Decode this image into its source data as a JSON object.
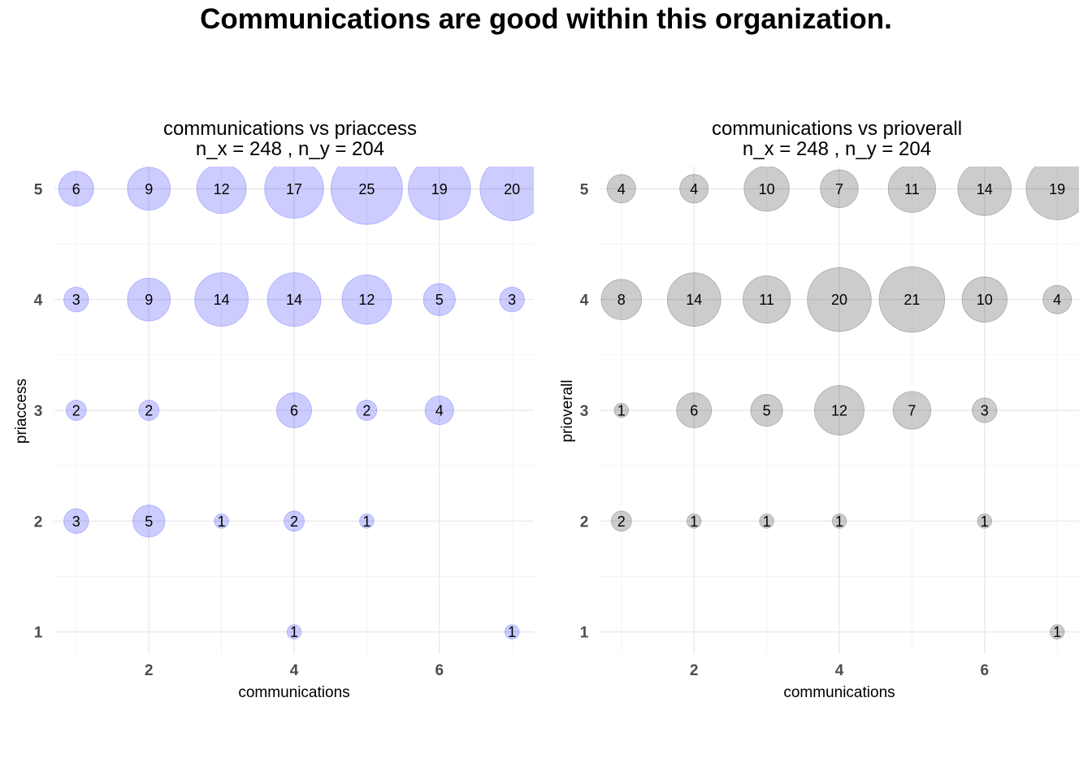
{
  "title": "Communications are good within this organization.",
  "chart_data": [
    {
      "type": "scatter",
      "title": "communications vs priaccess",
      "subtitle": "n_x = 248 , n_y = 204",
      "xlabel": "communications",
      "ylabel": "priaccess",
      "x_ticks": [
        2,
        4,
        6
      ],
      "y_ticks": [
        1,
        2,
        3,
        4,
        5
      ],
      "xlim": [
        0.7,
        7.3
      ],
      "ylim": [
        0.8,
        5.2
      ],
      "grid": true,
      "bubble_color": "#0000ff",
      "bubble_opacity": 0.2,
      "points": [
        {
          "x": 1,
          "y": 5,
          "count": 6
        },
        {
          "x": 2,
          "y": 5,
          "count": 9
        },
        {
          "x": 3,
          "y": 5,
          "count": 12
        },
        {
          "x": 4,
          "y": 5,
          "count": 17
        },
        {
          "x": 5,
          "y": 5,
          "count": 25
        },
        {
          "x": 6,
          "y": 5,
          "count": 19
        },
        {
          "x": 7,
          "y": 5,
          "count": 20
        },
        {
          "x": 1,
          "y": 4,
          "count": 3
        },
        {
          "x": 2,
          "y": 4,
          "count": 9
        },
        {
          "x": 3,
          "y": 4,
          "count": 14
        },
        {
          "x": 4,
          "y": 4,
          "count": 14
        },
        {
          "x": 5,
          "y": 4,
          "count": 12
        },
        {
          "x": 6,
          "y": 4,
          "count": 5
        },
        {
          "x": 7,
          "y": 4,
          "count": 3
        },
        {
          "x": 1,
          "y": 3,
          "count": 2
        },
        {
          "x": 2,
          "y": 3,
          "count": 2
        },
        {
          "x": 4,
          "y": 3,
          "count": 6
        },
        {
          "x": 5,
          "y": 3,
          "count": 2
        },
        {
          "x": 6,
          "y": 3,
          "count": 4
        },
        {
          "x": 1,
          "y": 2,
          "count": 3
        },
        {
          "x": 2,
          "y": 2,
          "count": 5
        },
        {
          "x": 3,
          "y": 2,
          "count": 1
        },
        {
          "x": 4,
          "y": 2,
          "count": 2
        },
        {
          "x": 5,
          "y": 2,
          "count": 1
        },
        {
          "x": 4,
          "y": 1,
          "count": 1
        },
        {
          "x": 7,
          "y": 1,
          "count": 1
        }
      ]
    },
    {
      "type": "scatter",
      "title": "communications vs prioverall",
      "subtitle": "n_x = 248 , n_y = 204",
      "xlabel": "communications",
      "ylabel": "prioverall",
      "x_ticks": [
        2,
        4,
        6
      ],
      "y_ticks": [
        1,
        2,
        3,
        4,
        5
      ],
      "xlim": [
        0.7,
        7.3
      ],
      "ylim": [
        0.8,
        5.2
      ],
      "grid": true,
      "bubble_color": "#000000",
      "bubble_opacity": 0.2,
      "points": [
        {
          "x": 1,
          "y": 5,
          "count": 4
        },
        {
          "x": 2,
          "y": 5,
          "count": 4
        },
        {
          "x": 3,
          "y": 5,
          "count": 10
        },
        {
          "x": 4,
          "y": 5,
          "count": 7
        },
        {
          "x": 5,
          "y": 5,
          "count": 11
        },
        {
          "x": 6,
          "y": 5,
          "count": 14
        },
        {
          "x": 7,
          "y": 5,
          "count": 19
        },
        {
          "x": 1,
          "y": 4,
          "count": 8
        },
        {
          "x": 2,
          "y": 4,
          "count": 14
        },
        {
          "x": 3,
          "y": 4,
          "count": 11
        },
        {
          "x": 4,
          "y": 4,
          "count": 20
        },
        {
          "x": 5,
          "y": 4,
          "count": 21
        },
        {
          "x": 6,
          "y": 4,
          "count": 10
        },
        {
          "x": 7,
          "y": 4,
          "count": 4
        },
        {
          "x": 1,
          "y": 3,
          "count": 1
        },
        {
          "x": 2,
          "y": 3,
          "count": 6
        },
        {
          "x": 3,
          "y": 3,
          "count": 5
        },
        {
          "x": 4,
          "y": 3,
          "count": 12
        },
        {
          "x": 5,
          "y": 3,
          "count": 7
        },
        {
          "x": 6,
          "y": 3,
          "count": 3
        },
        {
          "x": 1,
          "y": 2,
          "count": 2
        },
        {
          "x": 2,
          "y": 2,
          "count": 1
        },
        {
          "x": 3,
          "y": 2,
          "count": 1
        },
        {
          "x": 4,
          "y": 2,
          "count": 1
        },
        {
          "x": 6,
          "y": 2,
          "count": 1
        },
        {
          "x": 7,
          "y": 1,
          "count": 1
        }
      ]
    }
  ]
}
